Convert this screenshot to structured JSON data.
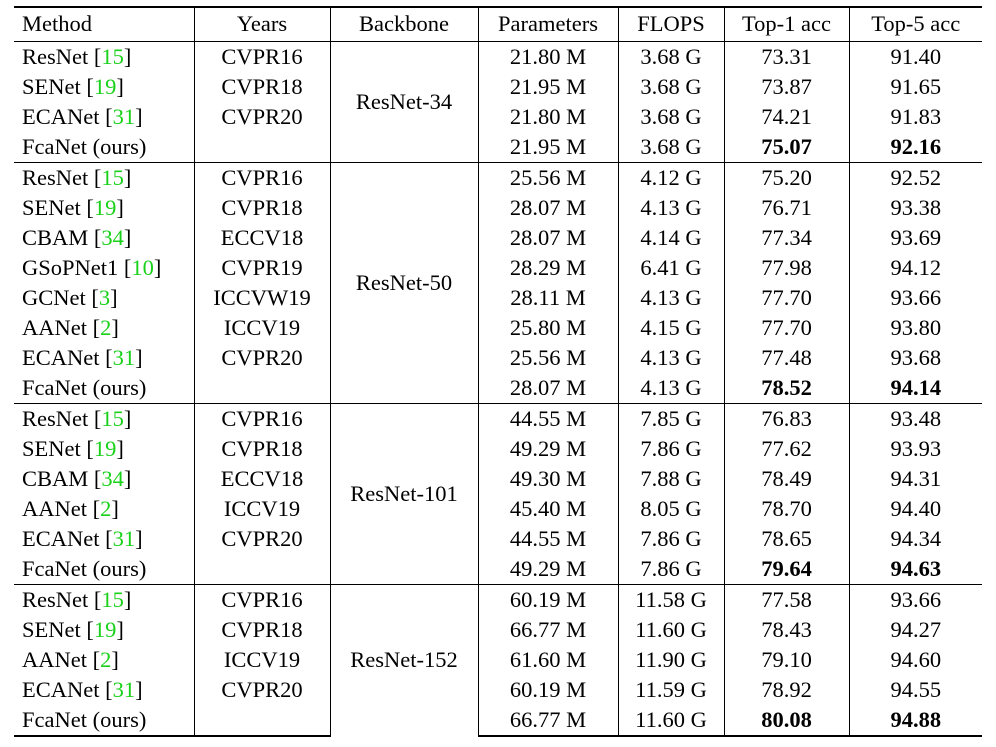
{
  "table": {
    "headers": [
      "Method",
      "Years",
      "Backbone",
      "Parameters",
      "FLOPS",
      "Top-1 acc",
      "Top-5 acc"
    ],
    "groups": [
      {
        "backbone": "ResNet-34",
        "rows": [
          {
            "method": "ResNet",
            "cite": "15",
            "year": "CVPR16",
            "params": "21.80 M",
            "flops": "3.68 G",
            "top1": "73.31",
            "top5": "91.40"
          },
          {
            "method": "SENet",
            "cite": "19",
            "year": "CVPR18",
            "params": "21.95 M",
            "flops": "3.68 G",
            "top1": "73.87",
            "top5": "91.65"
          },
          {
            "method": "ECANet",
            "cite": "31",
            "year": "CVPR20",
            "params": "21.80 M",
            "flops": "3.68 G",
            "top1": "74.21",
            "top5": "91.83"
          },
          {
            "method": "FcaNet (ours)",
            "cite": "",
            "year": "",
            "params": "21.95 M",
            "flops": "3.68 G",
            "top1": "75.07",
            "top5": "92.16",
            "bold": true
          }
        ]
      },
      {
        "backbone": "ResNet-50",
        "rows": [
          {
            "method": "ResNet",
            "cite": "15",
            "year": "CVPR16",
            "params": "25.56 M",
            "flops": "4.12 G",
            "top1": "75.20",
            "top5": "92.52"
          },
          {
            "method": "SENet",
            "cite": "19",
            "year": "CVPR18",
            "params": "28.07 M",
            "flops": "4.13 G",
            "top1": "76.71",
            "top5": "93.38"
          },
          {
            "method": "CBAM",
            "cite": "34",
            "year": "ECCV18",
            "params": "28.07 M",
            "flops": "4.14 G",
            "top1": "77.34",
            "top5": "93.69"
          },
          {
            "method": "GSoPNet1",
            "cite": "10",
            "year": "CVPR19",
            "params": "28.29 M",
            "flops": "6.41 G",
            "top1": "77.98",
            "top5": "94.12"
          },
          {
            "method": "GCNet",
            "cite": "3",
            "year": "ICCVW19",
            "params": "28.11 M",
            "flops": "4.13 G",
            "top1": "77.70",
            "top5": "93.66"
          },
          {
            "method": "AANet",
            "cite": "2",
            "year": "ICCV19",
            "params": "25.80 M",
            "flops": "4.15 G",
            "top1": "77.70",
            "top5": "93.80"
          },
          {
            "method": "ECANet",
            "cite": "31",
            "year": "CVPR20",
            "params": "25.56 M",
            "flops": "4.13 G",
            "top1": "77.48",
            "top5": "93.68"
          },
          {
            "method": "FcaNet (ours)",
            "cite": "",
            "year": "",
            "params": "28.07 M",
            "flops": "4.13 G",
            "top1": "78.52",
            "top5": "94.14",
            "bold": true
          }
        ]
      },
      {
        "backbone": "ResNet-101",
        "rows": [
          {
            "method": "ResNet",
            "cite": "15",
            "year": "CVPR16",
            "params": "44.55 M",
            "flops": "7.85 G",
            "top1": "76.83",
            "top5": "93.48"
          },
          {
            "method": "SENet",
            "cite": "19",
            "year": "CVPR18",
            "params": "49.29 M",
            "flops": "7.86 G",
            "top1": "77.62",
            "top5": "93.93"
          },
          {
            "method": "CBAM",
            "cite": "34",
            "year": "ECCV18",
            "params": "49.30 M",
            "flops": "7.88 G",
            "top1": "78.49",
            "top5": "94.31"
          },
          {
            "method": "AANet",
            "cite": "2",
            "year": "ICCV19",
            "params": "45.40 M",
            "flops": "8.05 G",
            "top1": "78.70",
            "top5": "94.40"
          },
          {
            "method": "ECANet",
            "cite": "31",
            "year": "CVPR20",
            "params": "44.55 M",
            "flops": "7.86 G",
            "top1": "78.65",
            "top5": "94.34"
          },
          {
            "method": "FcaNet (ours)",
            "cite": "",
            "year": "",
            "params": "49.29 M",
            "flops": "7.86 G",
            "top1": "79.64",
            "top5": "94.63",
            "bold": true
          }
        ]
      },
      {
        "backbone": "ResNet-152",
        "rows": [
          {
            "method": "ResNet",
            "cite": "15",
            "year": "CVPR16",
            "params": "60.19 M",
            "flops": "11.58 G",
            "top1": "77.58",
            "top5": "93.66"
          },
          {
            "method": "SENet",
            "cite": "19",
            "year": "CVPR18",
            "params": "66.77 M",
            "flops": "11.60 G",
            "top1": "78.43",
            "top5": "94.27"
          },
          {
            "method": "AANet",
            "cite": "2",
            "year": "ICCV19",
            "params": "61.60 M",
            "flops": "11.90 G",
            "top1": "79.10",
            "top5": "94.60"
          },
          {
            "method": "ECANet",
            "cite": "31",
            "year": "CVPR20",
            "params": "60.19 M",
            "flops": "11.59 G",
            "top1": "78.92",
            "top5": "94.55"
          },
          {
            "method": "FcaNet (ours)",
            "cite": "",
            "year": "",
            "params": "66.77 M",
            "flops": "11.60 G",
            "top1": "80.08",
            "top5": "94.88",
            "bold": true
          }
        ]
      }
    ]
  },
  "colors": {
    "citation": "#19d119",
    "text": "#000000",
    "background": "#ffffff"
  }
}
